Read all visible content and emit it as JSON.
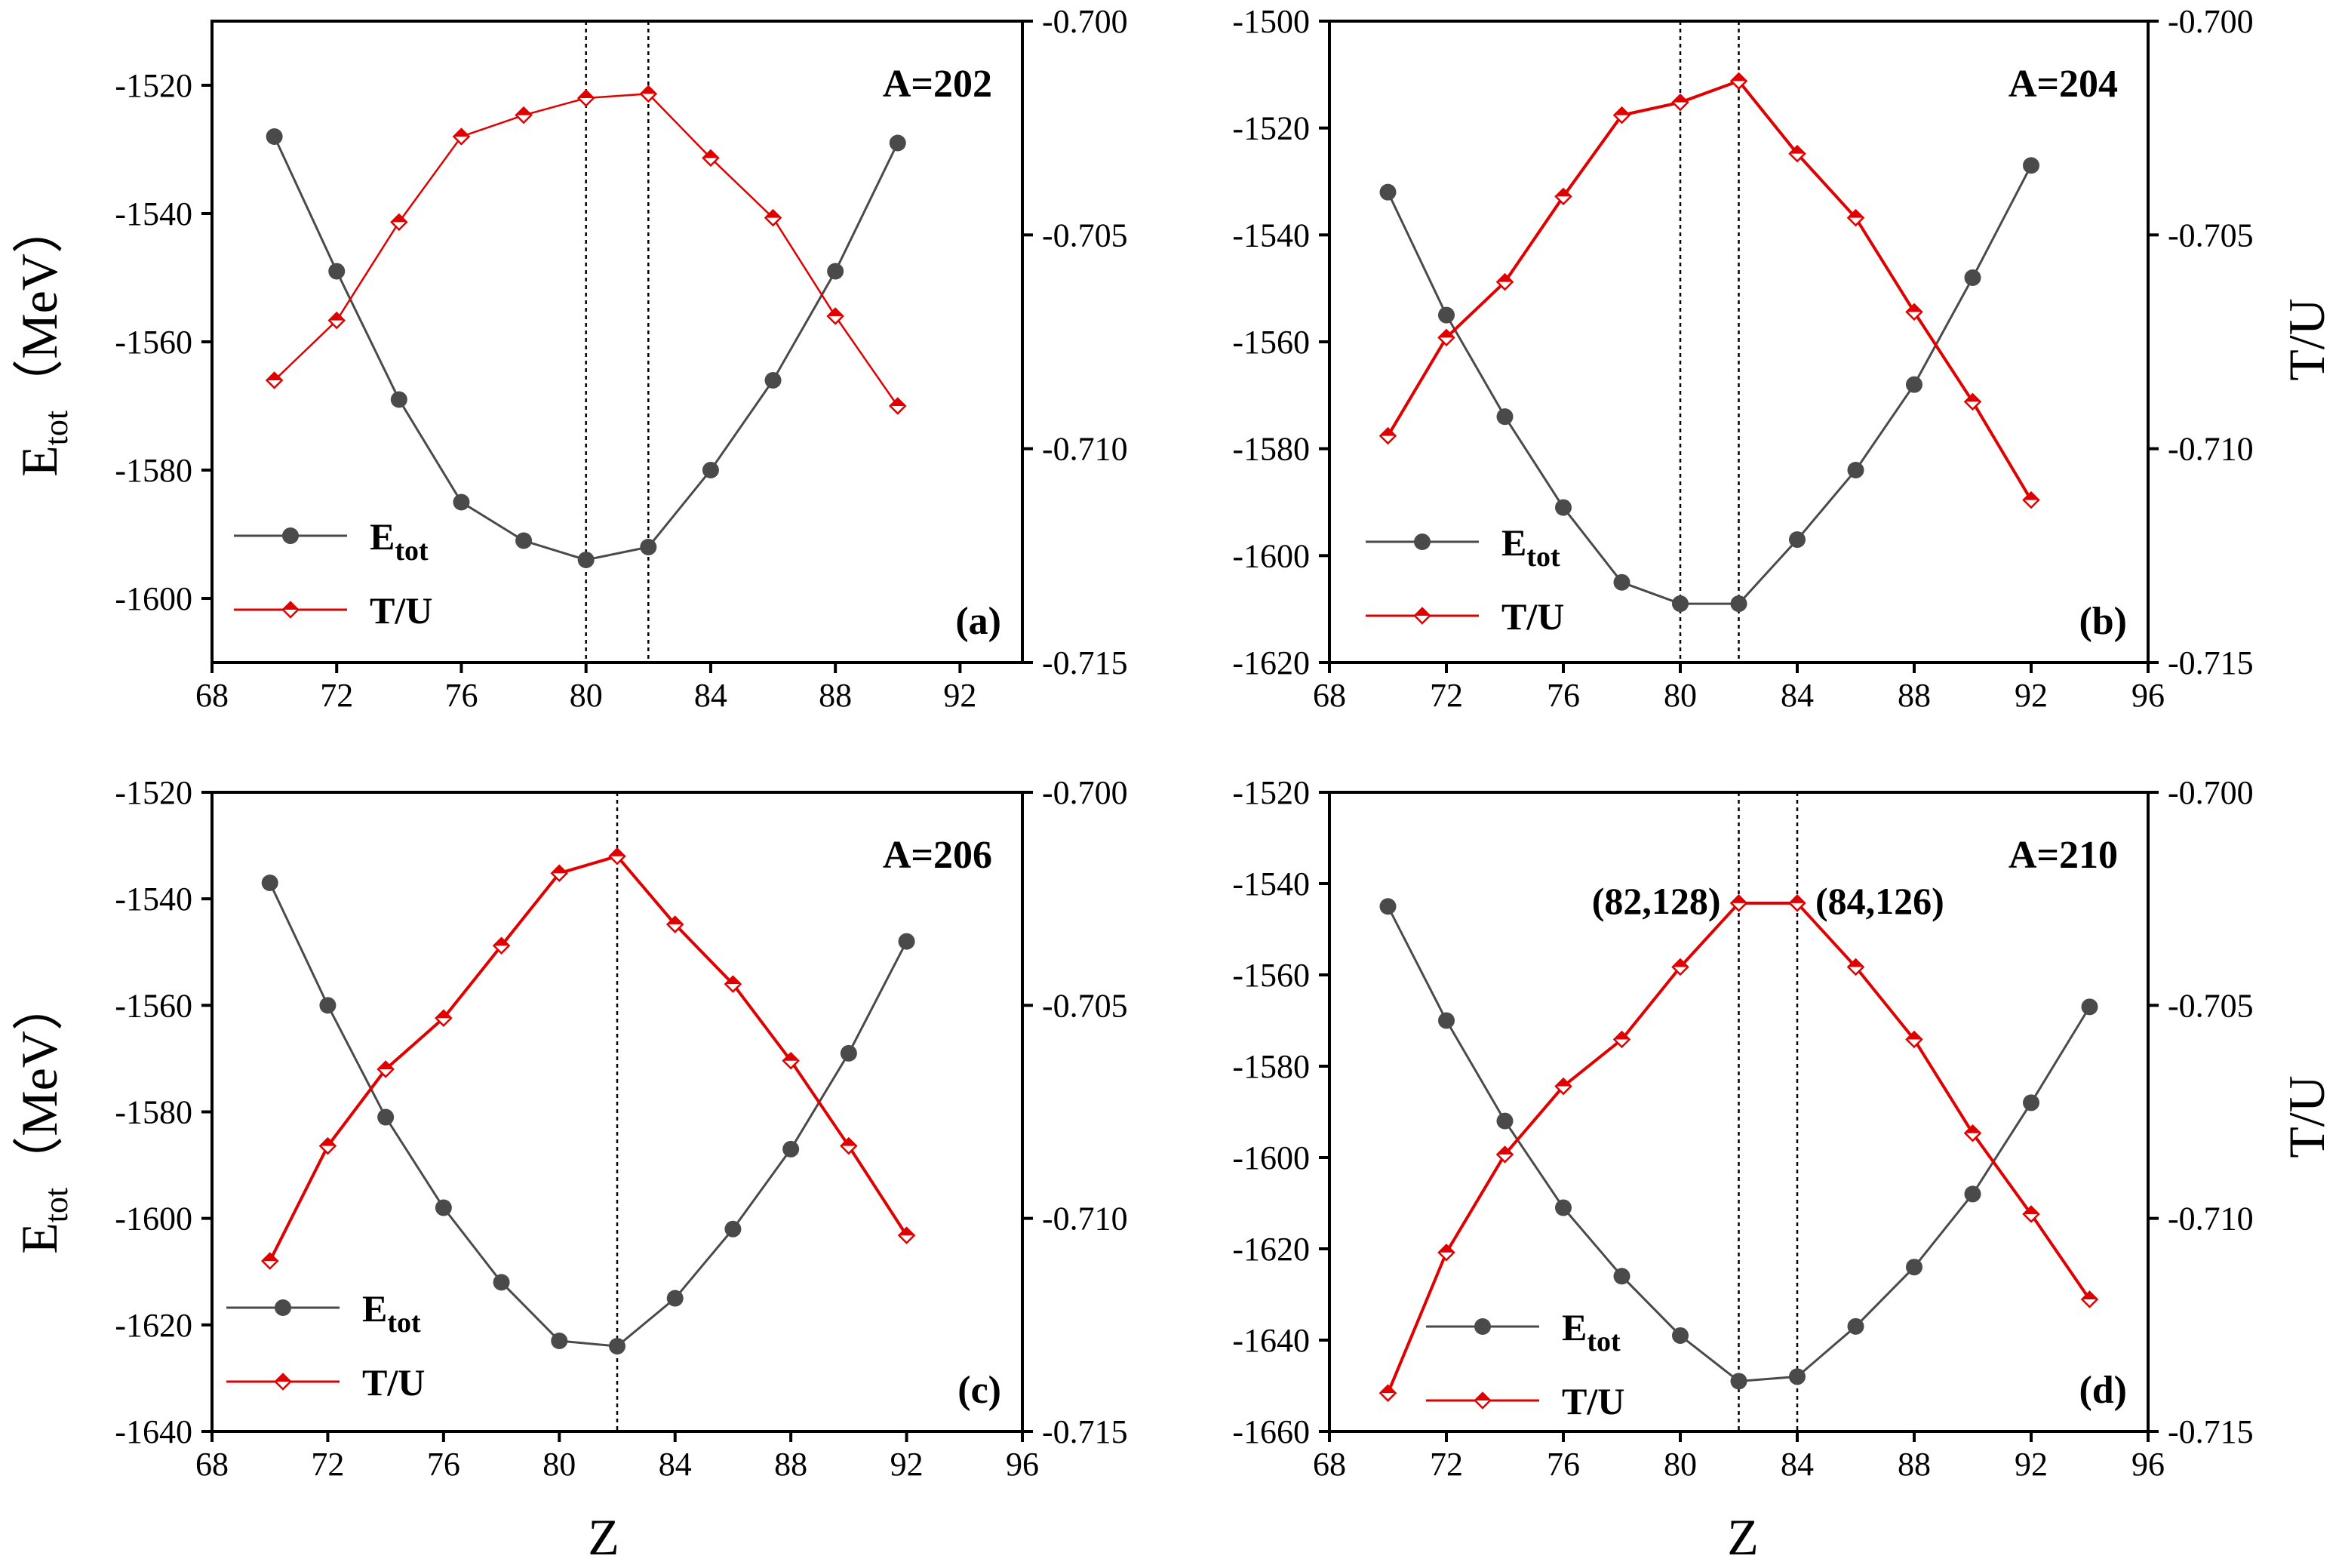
{
  "figure": {
    "x_title": "Z",
    "left_title_main": "E",
    "left_title_sub": "tot",
    "left_title_unit": "（MeV）",
    "right_title": "T/U"
  },
  "legend": {
    "etot_main": "E",
    "etot_sub": "tot",
    "tu": "T/U"
  },
  "colors": {
    "etot": "#4a4a4a",
    "tu": "#e00000",
    "axis": "#000000"
  },
  "chart_data": [
    {
      "type": "line",
      "title": "A=202",
      "panel_label": "(a)",
      "xlabel": "Z",
      "ylabel": "Etot（MeV）",
      "y2label": "T/U",
      "xlim": [
        68,
        94
      ],
      "xticks": [
        68,
        72,
        76,
        80,
        84,
        88,
        92
      ],
      "ylim": [
        -1610,
        -1510
      ],
      "yticks": [
        -1520,
        -1540,
        -1560,
        -1580,
        -1600
      ],
      "y2lim": [
        -0.715,
        -0.7
      ],
      "y2ticks": [
        -0.7,
        -0.705,
        -0.71,
        -0.715
      ],
      "vlines": [
        80,
        82
      ],
      "series": [
        {
          "name": "Etot",
          "axis": "left",
          "marker": "circle",
          "x": [
            70,
            72,
            74,
            76,
            78,
            80,
            82,
            84,
            86,
            88,
            90
          ],
          "y": [
            -1528,
            -1549,
            -1569,
            -1585,
            -1591,
            -1594,
            -1592,
            -1580,
            -1566,
            -1549,
            -1529
          ]
        },
        {
          "name": "T/U",
          "axis": "right",
          "marker": "diamond",
          "x": [
            70,
            72,
            74,
            76,
            78,
            80,
            82,
            84,
            86,
            88,
            90
          ],
          "y": [
            -0.7084,
            -0.707,
            -0.7047,
            -0.7027,
            -0.7022,
            -0.7018,
            -0.7017,
            -0.7032,
            -0.7046,
            -0.7069,
            -0.709
          ]
        }
      ],
      "annotations": []
    },
    {
      "type": "line",
      "title": "A=204",
      "panel_label": "(b)",
      "xlabel": "Z",
      "ylabel": "Etot（MeV）",
      "y2label": "T/U",
      "xlim": [
        68,
        96
      ],
      "xticks": [
        68,
        72,
        76,
        80,
        84,
        88,
        92,
        96
      ],
      "ylim": [
        -1620,
        -1500
      ],
      "yticks": [
        -1500,
        -1520,
        -1540,
        -1560,
        -1580,
        -1600,
        -1620
      ],
      "y2lim": [
        -0.715,
        -0.7
      ],
      "y2ticks": [
        -0.7,
        -0.705,
        -0.71,
        -0.715
      ],
      "vlines": [
        80,
        82
      ],
      "series": [
        {
          "name": "Etot",
          "axis": "left",
          "marker": "circle",
          "x": [
            70,
            72,
            74,
            76,
            78,
            80,
            82,
            84,
            86,
            88,
            90,
            92
          ],
          "y": [
            -1532,
            -1555,
            -1574,
            -1591,
            -1605,
            -1609,
            -1609,
            -1597,
            -1584,
            -1568,
            -1548,
            -1527
          ]
        },
        {
          "name": "T/U",
          "axis": "right",
          "marker": "diamond",
          "x": [
            70,
            72,
            74,
            76,
            78,
            80,
            82,
            84,
            86,
            88,
            90,
            92
          ],
          "y": [
            -0.7097,
            -0.7074,
            -0.7061,
            -0.7041,
            -0.7022,
            -0.7019,
            -0.7014,
            -0.7031,
            -0.7046,
            -0.7068,
            -0.7089,
            -0.7112
          ]
        }
      ],
      "annotations": []
    },
    {
      "type": "line",
      "title": "A=206",
      "panel_label": "(c)",
      "xlabel": "Z",
      "ylabel": "Etot（MeV）",
      "y2label": "T/U",
      "xlim": [
        68,
        96
      ],
      "xticks": [
        68,
        72,
        76,
        80,
        84,
        88,
        92,
        96
      ],
      "ylim": [
        -1640,
        -1520
      ],
      "yticks": [
        -1520,
        -1540,
        -1560,
        -1580,
        -1600,
        -1620,
        -1640
      ],
      "y2lim": [
        -0.715,
        -0.7
      ],
      "y2ticks": [
        -0.7,
        -0.705,
        -0.71,
        -0.715
      ],
      "vlines": [
        82
      ],
      "series": [
        {
          "name": "Etot",
          "axis": "left",
          "marker": "circle",
          "x": [
            70,
            72,
            74,
            76,
            78,
            80,
            82,
            84,
            86,
            88,
            90,
            92
          ],
          "y": [
            -1537,
            -1560,
            -1581,
            -1598,
            -1612,
            -1623,
            -1624,
            -1615,
            -1602,
            -1587,
            -1569,
            -1548
          ]
        },
        {
          "name": "T/U",
          "axis": "right",
          "marker": "diamond",
          "x": [
            70,
            72,
            74,
            76,
            78,
            80,
            82,
            84,
            86,
            88,
            90,
            92
          ],
          "y": [
            -0.711,
            -0.7083,
            -0.7065,
            -0.7053,
            -0.7036,
            -0.7019,
            -0.7015,
            -0.7031,
            -0.7045,
            -0.7063,
            -0.7083,
            -0.7104
          ]
        }
      ],
      "annotations": []
    },
    {
      "type": "line",
      "title": "A=210",
      "panel_label": "(d)",
      "xlabel": "Z",
      "ylabel": "Etot（MeV）",
      "y2label": "T/U",
      "xlim": [
        68,
        96
      ],
      "xticks": [
        68,
        72,
        76,
        80,
        84,
        88,
        92,
        96
      ],
      "ylim": [
        -1660,
        -1520
      ],
      "yticks": [
        -1520,
        -1540,
        -1560,
        -1580,
        -1600,
        -1620,
        -1640,
        -1660
      ],
      "y2lim": [
        -0.715,
        -0.7
      ],
      "y2ticks": [
        -0.7,
        -0.705,
        -0.71,
        -0.715
      ],
      "vlines": [
        82,
        84
      ],
      "series": [
        {
          "name": "Etot",
          "axis": "left",
          "marker": "circle",
          "x": [
            70,
            72,
            74,
            76,
            78,
            80,
            82,
            84,
            86,
            88,
            90,
            92,
            94
          ],
          "y": [
            -1545,
            -1570,
            -1592,
            -1611,
            -1626,
            -1639,
            -1649,
            -1648,
            -1637,
            -1624,
            -1608,
            -1588,
            -1567
          ]
        },
        {
          "name": "T/U",
          "axis": "right",
          "marker": "diamond",
          "x": [
            70,
            72,
            74,
            76,
            78,
            80,
            82,
            84,
            86,
            88,
            90,
            92,
            94
          ],
          "y": [
            -0.7141,
            -0.7108,
            -0.7085,
            -0.7069,
            -0.7058,
            -0.7041,
            -0.7026,
            -0.7026,
            -0.7041,
            -0.7058,
            -0.708,
            -0.7099,
            -0.7119
          ]
        }
      ],
      "annotations": [
        {
          "text": "(82,128)",
          "side": "left",
          "x": 82,
          "series": "T/U"
        },
        {
          "text": "(84,126)",
          "side": "right",
          "x": 84,
          "series": "T/U"
        }
      ]
    }
  ]
}
